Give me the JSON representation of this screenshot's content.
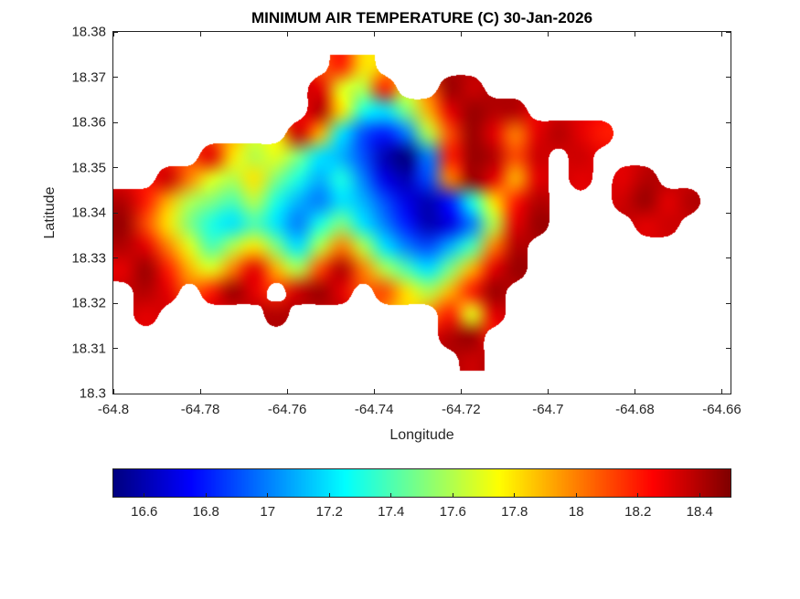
{
  "colors": {
    "background": "#ffffff",
    "axis_color": "#262626",
    "title_color": "#000000"
  },
  "chart_data": {
    "type": "heatmap",
    "title": "MINIMUM AIR TEMPERATURE (C) 30-Jan-2026",
    "xlabel": "Longitude",
    "ylabel": "Latitude",
    "xlim": [
      -64.8,
      -64.658
    ],
    "ylim": [
      18.3,
      18.38
    ],
    "x_ticks": {
      "values": [
        -64.8,
        -64.78,
        -64.76,
        -64.74,
        -64.72,
        -64.7,
        -64.68,
        -64.66
      ],
      "labels": [
        "-64.8",
        "-64.78",
        "-64.76",
        "-64.74",
        "-64.72",
        "-64.7",
        "-64.68",
        "-64.66"
      ]
    },
    "y_ticks": {
      "values": [
        18.3,
        18.31,
        18.32,
        18.33,
        18.34,
        18.35,
        18.36,
        18.37,
        18.38
      ],
      "labels": [
        "18.3",
        "18.31",
        "18.32",
        "18.33",
        "18.34",
        "18.35",
        "18.36",
        "18.37",
        "18.38"
      ]
    },
    "colorbar": {
      "colormap": "jet",
      "min": 16.5,
      "max": 18.5,
      "orientation": "horizontal",
      "tick_values": [
        16.6,
        16.8,
        17,
        17.2,
        17.4,
        17.6,
        17.8,
        18,
        18.2,
        18.4
      ],
      "tick_labels": [
        "16.6",
        "16.8",
        "17",
        "17.2",
        "17.4",
        "17.6",
        "17.8",
        "18",
        "18.2",
        "18.4"
      ]
    },
    "grid": {
      "description": "Estimated minimum air temperature (C) on a coarse lon/lat grid; null = sea (no data)",
      "cols": 28,
      "lon_start": -64.7975,
      "lon_step": 0.005,
      "lat_start": 18.3725,
      "lat_step": -0.005,
      "values": [
        [
          null,
          null,
          null,
          null,
          null,
          null,
          null,
          null,
          null,
          null,
          18.2,
          17.8,
          null,
          null,
          null,
          null,
          null,
          null,
          null,
          null,
          null,
          null,
          null,
          null,
          null,
          null,
          null,
          null
        ],
        [
          null,
          null,
          null,
          null,
          null,
          null,
          null,
          null,
          null,
          18.3,
          17.7,
          17.6,
          18.2,
          null,
          null,
          18.45,
          18.35,
          null,
          null,
          null,
          null,
          null,
          null,
          null,
          null,
          null,
          null,
          null
        ],
        [
          null,
          null,
          null,
          null,
          null,
          null,
          null,
          null,
          null,
          18.4,
          17.8,
          17.3,
          17.2,
          17.5,
          17.9,
          18.3,
          18.45,
          18.4,
          18.4,
          null,
          null,
          null,
          null,
          null,
          null,
          null,
          null,
          null
        ],
        [
          null,
          null,
          null,
          null,
          null,
          null,
          null,
          null,
          18.35,
          17.9,
          17.2,
          16.9,
          16.8,
          17.0,
          17.6,
          18.1,
          18.45,
          18.3,
          18.0,
          18.3,
          18.4,
          18.3,
          18.2,
          null,
          null,
          null,
          null,
          null
        ],
        [
          null,
          null,
          null,
          null,
          18.3,
          17.8,
          17.6,
          17.7,
          17.5,
          17.2,
          17.1,
          16.9,
          16.6,
          16.5,
          17.0,
          18.2,
          18.45,
          18.4,
          18.1,
          18.35,
          null,
          18.35,
          null,
          null,
          null,
          null,
          null,
          null
        ],
        [
          null,
          null,
          18.35,
          18.0,
          17.7,
          17.6,
          17.8,
          17.5,
          17.3,
          17.1,
          17.3,
          17.0,
          16.7,
          16.6,
          16.9,
          18.0,
          18.45,
          18.3,
          17.9,
          18.3,
          null,
          18.3,
          null,
          18.3,
          18.4,
          null,
          null,
          null
        ],
        [
          18.4,
          18.2,
          17.9,
          17.6,
          17.5,
          17.4,
          17.6,
          17.3,
          17.1,
          17.0,
          17.2,
          17.1,
          16.9,
          16.7,
          16.6,
          16.8,
          17.3,
          17.8,
          18.2,
          18.4,
          null,
          null,
          null,
          18.35,
          18.45,
          18.3,
          18.4,
          null
        ],
        [
          18.45,
          18.1,
          17.8,
          17.5,
          17.3,
          17.2,
          17.4,
          17.2,
          17.0,
          17.3,
          17.5,
          17.2,
          17.0,
          16.8,
          16.6,
          16.7,
          17.0,
          17.6,
          18.3,
          18.45,
          null,
          null,
          null,
          null,
          18.3,
          18.35,
          null,
          null
        ],
        [
          18.4,
          18.3,
          18.0,
          17.7,
          17.4,
          17.6,
          17.8,
          17.5,
          17.2,
          17.6,
          18.0,
          17.6,
          17.2,
          17.0,
          16.9,
          17.1,
          17.4,
          18.0,
          18.4,
          null,
          null,
          null,
          null,
          null,
          null,
          null,
          null,
          null
        ],
        [
          18.3,
          18.45,
          18.2,
          17.9,
          17.7,
          18.0,
          18.3,
          17.9,
          17.6,
          18.1,
          18.4,
          18.0,
          17.6,
          17.4,
          17.2,
          17.5,
          17.9,
          18.3,
          18.45,
          null,
          null,
          null,
          null,
          null,
          null,
          null,
          null,
          null
        ],
        [
          null,
          18.4,
          18.3,
          null,
          18.2,
          18.45,
          18.3,
          null,
          18.35,
          18.45,
          18.3,
          null,
          18.1,
          17.8,
          17.6,
          17.9,
          18.2,
          18.45,
          null,
          null,
          null,
          null,
          null,
          null,
          null,
          null,
          null,
          null
        ],
        [
          null,
          18.3,
          null,
          null,
          null,
          null,
          null,
          18.4,
          null,
          null,
          null,
          null,
          null,
          null,
          null,
          18.2,
          17.7,
          18.3,
          null,
          null,
          null,
          null,
          null,
          null,
          null,
          null,
          null,
          null
        ],
        [
          null,
          null,
          null,
          null,
          null,
          null,
          null,
          null,
          null,
          null,
          null,
          null,
          null,
          null,
          null,
          18.4,
          18.45,
          null,
          null,
          null,
          null,
          null,
          null,
          null,
          null,
          null,
          null,
          null
        ],
        [
          null,
          null,
          null,
          null,
          null,
          null,
          null,
          null,
          null,
          null,
          null,
          null,
          null,
          null,
          null,
          null,
          18.35,
          null,
          null,
          null,
          null,
          null,
          null,
          null,
          null,
          null,
          null,
          null
        ]
      ]
    }
  }
}
